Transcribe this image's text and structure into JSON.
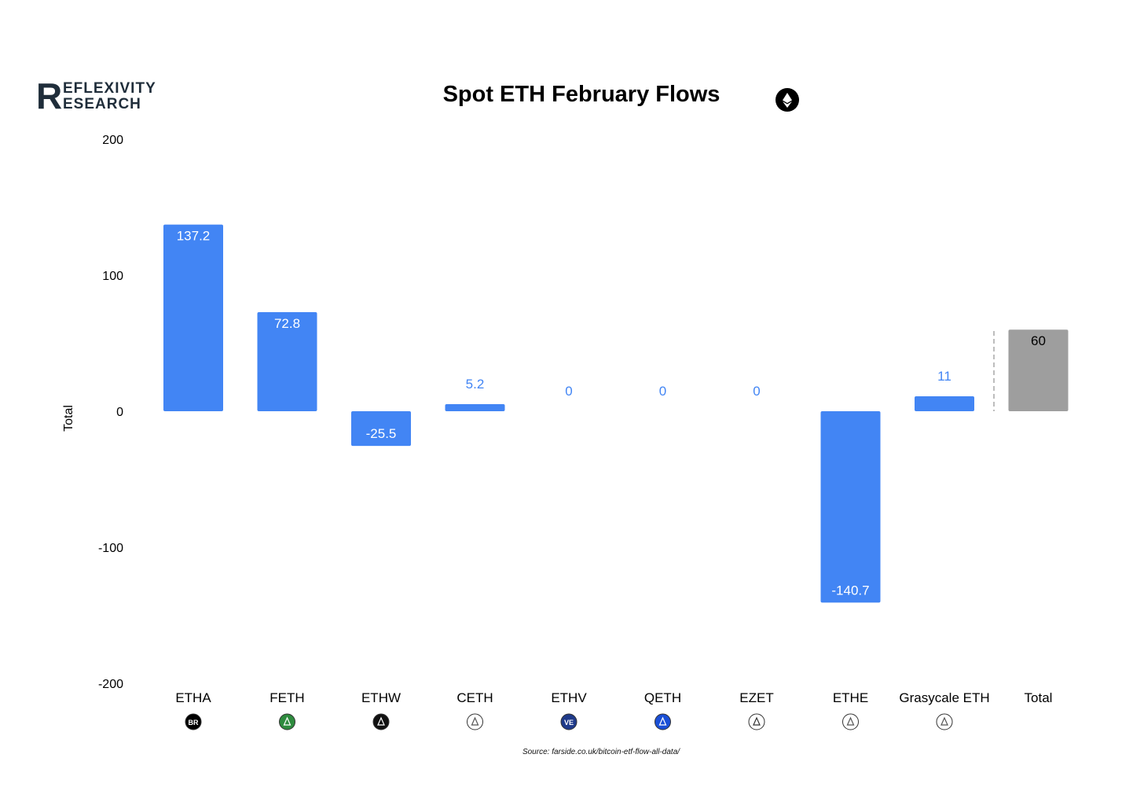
{
  "logo": {
    "letter": "R",
    "line1": "EFLEXIVITY",
    "line2": "ESEARCH"
  },
  "source": "Source: farside.co.uk/bitcoin-etf-flow-all-data/",
  "colors": {
    "bar": "#4285f4",
    "total": "#9e9e9e",
    "label_outside": "#4285f4"
  },
  "chart_data": {
    "type": "bar",
    "title": "Spot ETH February Flows",
    "ylabel": "Total",
    "ylim": [
      -200,
      200
    ],
    "yticks": [
      200,
      100,
      0,
      -100,
      -200
    ],
    "categories": [
      "ETHA",
      "FETH",
      "ETHW",
      "CETH",
      "ETHV",
      "QETH",
      "EZET",
      "ETHE",
      "Grasycale ETH",
      "Total"
    ],
    "values": [
      137.2,
      72.8,
      -25.5,
      5.2,
      0,
      0,
      0,
      -140.7,
      11,
      60
    ],
    "value_labels": [
      "137.2",
      "72.8",
      "-25.5",
      "5.2",
      "0",
      "0",
      "0",
      "-140.7",
      "11",
      "60"
    ],
    "bar_kinds": [
      "flow",
      "flow",
      "flow",
      "flow",
      "flow",
      "flow",
      "flow",
      "flow",
      "flow",
      "total"
    ],
    "icons": [
      {
        "name": "blackrock-icon",
        "text": "BR",
        "bg": "#000000",
        "fg": "#ffffff"
      },
      {
        "name": "fidelity-icon",
        "text": "",
        "bg": "#2e8b3e",
        "fg": "#ffffff"
      },
      {
        "name": "bitwise-icon",
        "text": "",
        "bg": "#111111",
        "fg": "#ffffff"
      },
      {
        "name": "invesco-icon",
        "text": "",
        "bg": "#ffffff",
        "fg": "#555555"
      },
      {
        "name": "vaneck-icon",
        "text": "VE",
        "bg": "#1f3a8a",
        "fg": "#ffffff"
      },
      {
        "name": "franklin-icon",
        "text": "",
        "bg": "#1a4fd6",
        "fg": "#ffffff"
      },
      {
        "name": "21shares-icon",
        "text": "",
        "bg": "#ffffff",
        "fg": "#333333"
      },
      {
        "name": "grayscale-icon",
        "text": "",
        "bg": "#ffffff",
        "fg": "#555555"
      },
      {
        "name": "grayscale-mini-icon",
        "text": "",
        "bg": "#ffffff",
        "fg": "#555555"
      }
    ]
  }
}
